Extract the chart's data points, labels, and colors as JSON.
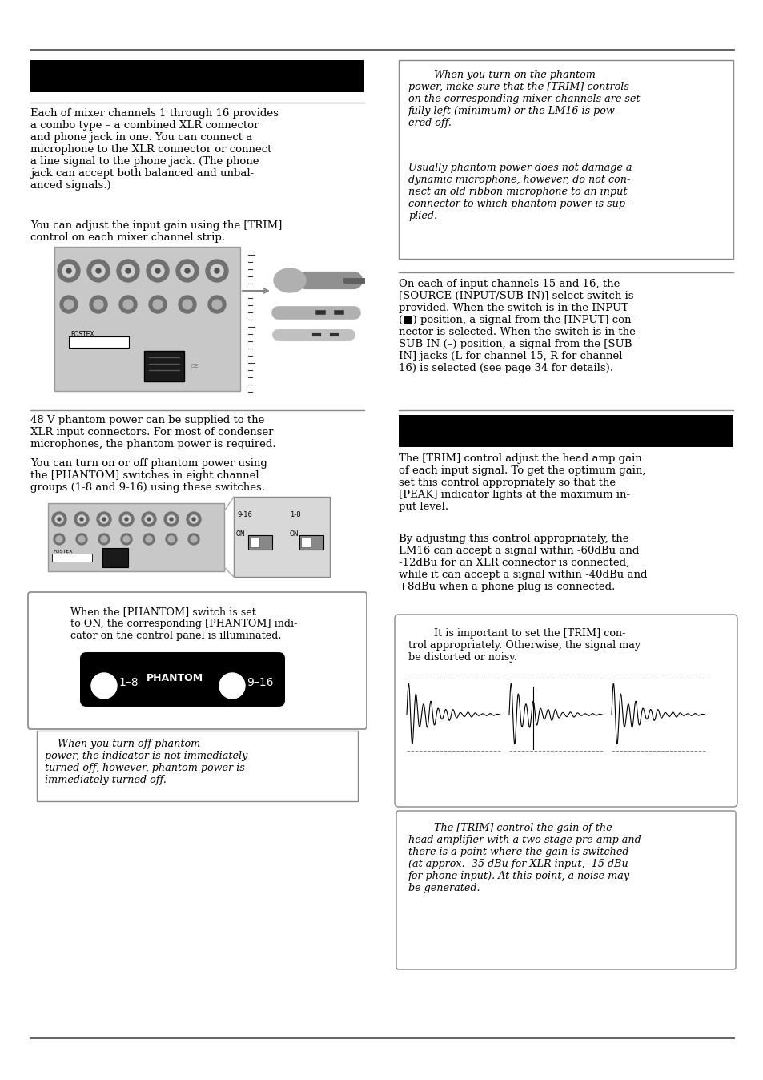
{
  "page_width": 9.54,
  "page_height": 13.48,
  "bg_color": "#ffffff",
  "col1_texts": {
    "text1": "Each of mixer channels 1 through 16 provides\na combo type – a combined XLR connector\nand phone jack in one. You can connect a\nmicrophone to the XLR connector or connect\na line signal to the phone jack. (The phone\njack can accept both balanced and unbal-\nanced signals.)",
    "text2": "You can adjust the input gain using the [TRIM]\ncontrol on each mixer channel strip.",
    "text3": "48 V phantom power can be supplied to the\nXLR input connectors. For most of condenser\nmicrophones, the phantom power is required.",
    "text4": "You can turn on or off phantom power using\nthe [PHANTOM] switches in eight channel\ngroups (1-8 and 9-16) using these switches.",
    "box_text": "When the [PHANTOM] switch is set\nto ON, the corresponding [PHANTOM] indi-\ncator on the control panel is illuminated.",
    "italic_box": "    When you turn off phantom\npower, the indicator is not immediately\nturned off, however, phantom power is\nimmediately turned off."
  },
  "col2_texts": {
    "box1_italic1": "        When you turn on the phantom\npower, make sure that the [TRIM] controls\non the corresponding mixer channels are set\nfully left (minimum) or the LM16 is pow-\nered off.",
    "box1_italic2": "Usually phantom power does not damage a\ndynamic microphone, however, do not con-\nnect an old ribbon microphone to an input\nconnector to which phantom power is sup-\nplied.",
    "text1": "On each of input channels 15 and 16, the\n[SOURCE (INPUT/SUB IN)] select switch is\nprovided. When the switch is in the INPUT\n(■) position, a signal from the [INPUT] con-\nnector is selected. When the switch is in the\nSUB IN (–) position, a signal from the [SUB\nIN] jacks (L for channel 15, R for channel\n16) is selected (see page 34 for details).",
    "text2": "The [TRIM] control adjust the head amp gain\nof each input signal. To get the optimum gain,\nset this control appropriately so that the\n[PEAK] indicator lights at the maximum in-\nput level.",
    "text3": "By adjusting this control appropriately, the\nLM16 can accept a signal within -60dBu and\n-12dBu for an XLR connector is connected,\nwhile it can accept a signal within -40dBu and\n+8dBu when a phone plug is connected.",
    "trimbox_text": "        It is important to set the [TRIM] con-\ntrol appropriately. Otherwise, the signal may\nbe distorted or noisy.",
    "italic_box": "        The [TRIM] control the gain of the\nhead amplifier with a two-stage pre-amp and\nthere is a point where the gain is switched\n(at approx. -35 dBu for XLR input, -15 dBu\nfor phone input). At this point, a noise may\nbe generated."
  }
}
